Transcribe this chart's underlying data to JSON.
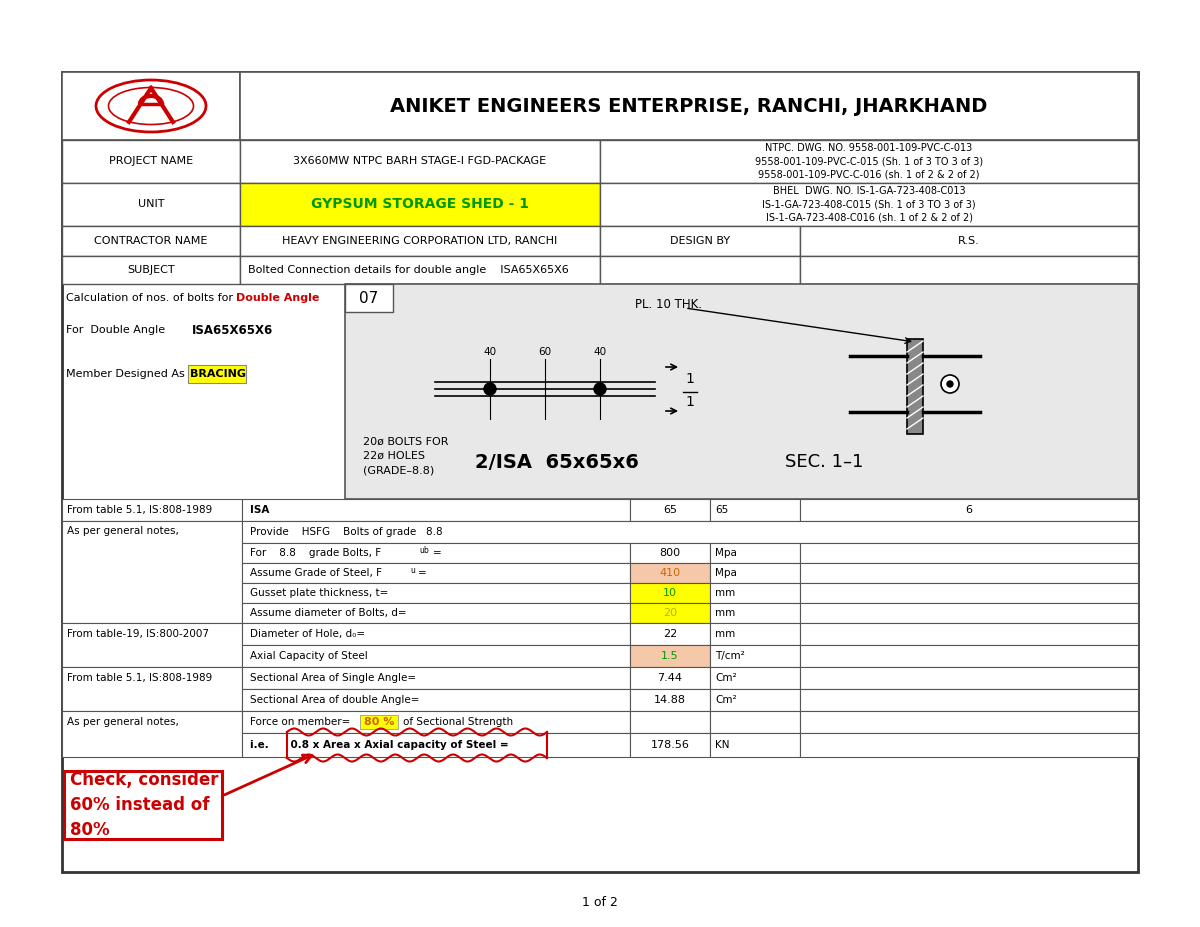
{
  "company": "ANIKET ENGINEERS ENTERPRISE, RANCHI, JHARKHAND",
  "project_name_label": "PROJECT NAME",
  "project_name_value": "3X660MW NTPC BARH STAGE-I FGD-PACKAGE",
  "ntpc_lines": [
    "NTPC. DWG. NO. 9558-001-109-PVC-C-013",
    "9558-001-109-PVC-C-015 (Sh. 1 of 3 TO 3 of 3)",
    "9558-001-109-PVC-C-016 (sh. 1 of 2 & 2 of 2)"
  ],
  "unit_label": "UNIT",
  "unit_value": "GYPSUM STORAGE SHED - 1",
  "bhel_lines": [
    "BHEL  DWG. NO. IS-1-GA-723-408-C013",
    "IS-1-GA-723-408-C015 (Sh. 1 of 3 TO 3 of 3)",
    "IS-1-GA-723-408-C016 (sh. 1 of 2 & 2 of 2)"
  ],
  "contractor_label": "CONTRACTOR NAME",
  "contractor_value": "HEAVY ENGINEERING CORPORATION LTD, RANCHI",
  "design_by_label": "DESIGN BY",
  "design_by_value": "R.S.",
  "subject_label": "SUBJECT",
  "subject_value": "Bolted Connection details for double angle    ISA65X65X6",
  "calc_label1a": "Calculation of nos. of bolts for ",
  "calc_label1b": "Double Angle",
  "calc_label2a": "For  Double Angle",
  "calc_label2b": "ISA65X65X6",
  "calc_label3a": "Member Designed As",
  "calc_label3b": "BRACING",
  "drawing_number": "07",
  "page_number": "1 of 2",
  "check_text": "Check, consider\n60% instead of\n80%",
  "lc": "#555555",
  "yellow": "#ffff00",
  "pink": "#f5c8aa",
  "green": "#009900",
  "orange": "#cc6600",
  "red": "#cc0000"
}
